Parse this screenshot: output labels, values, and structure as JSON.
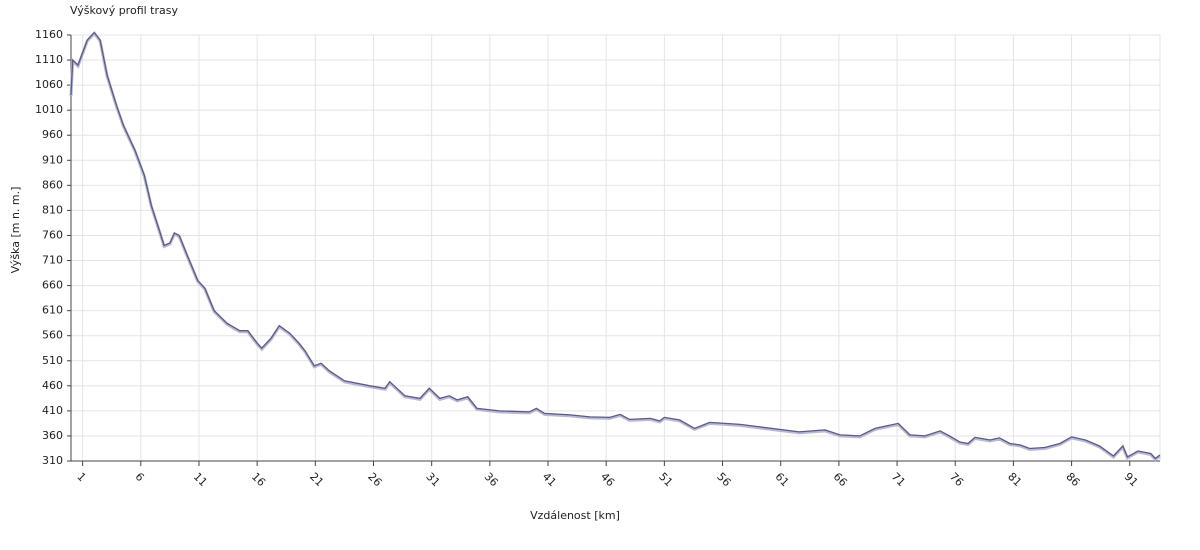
{
  "chart_data": {
    "type": "line",
    "title": "Výškový profil trasy",
    "x_label": "Vzdálenost [km]",
    "y_label": "Výška [m n. m.]",
    "x": [
      0,
      0.15,
      0.6,
      1.4,
      2.0,
      2.5,
      3.1,
      3.9,
      4.5,
      5.5,
      6.3,
      6.9,
      7.6,
      8.0,
      8.5,
      8.9,
      9.3,
      10.0,
      10.9,
      11.5,
      12.3,
      13.4,
      14.5,
      15.2,
      16.0,
      16.4,
      17.2,
      17.9,
      18.8,
      19.6,
      20.1,
      20.9,
      21.5,
      22.2,
      23.5,
      25.7,
      27.0,
      27.4,
      28.0,
      28.7,
      30.0,
      30.8,
      31.7,
      32.5,
      33.2,
      34.1,
      34.9,
      36.8,
      39.4,
      40.0,
      40.7,
      42.9,
      44.6,
      46.3,
      47.2,
      48.0,
      49.8,
      50.6,
      51.0,
      52.3,
      53.6,
      54.9,
      57.5,
      59.2,
      60.9,
      62.6,
      64.8,
      66.1,
      67.8,
      69.1,
      71.1,
      72.1,
      73.4,
      74.7,
      75.5,
      76.4,
      77.1,
      77.7,
      79.0,
      79.8,
      80.7,
      81.6,
      82.4,
      83.7,
      85.0,
      86.0,
      87.2,
      88.4,
      89.6,
      90.4,
      90.8,
      91.7,
      92.8,
      93.2,
      93.6
    ],
    "values": [
      1040,
      1110,
      1100,
      1150,
      1165,
      1150,
      1080,
      1020,
      980,
      930,
      880,
      820,
      770,
      740,
      745,
      765,
      760,
      720,
      670,
      655,
      610,
      585,
      570,
      570,
      545,
      535,
      555,
      580,
      565,
      545,
      530,
      500,
      505,
      490,
      470,
      460,
      455,
      468,
      455,
      440,
      435,
      455,
      435,
      440,
      432,
      438,
      415,
      410,
      408,
      415,
      405,
      402,
      398,
      397,
      403,
      393,
      395,
      390,
      397,
      392,
      375,
      387,
      383,
      378,
      373,
      368,
      372,
      362,
      360,
      375,
      385,
      362,
      360,
      370,
      360,
      348,
      345,
      357,
      352,
      356,
      345,
      342,
      335,
      337,
      345,
      358,
      352,
      340,
      320,
      340,
      318,
      330,
      325,
      315,
      322
    ],
    "color": "#5c5c80",
    "xlim": [
      0,
      93.6
    ],
    "xticks": [
      1,
      6,
      11,
      16,
      21,
      26,
      31,
      36,
      41,
      46,
      51,
      56,
      61,
      66,
      71,
      76,
      81,
      86,
      91
    ],
    "ylim": [
      310,
      1160
    ],
    "yticks": [
      310,
      360,
      410,
      460,
      510,
      560,
      610,
      660,
      710,
      760,
      810,
      860,
      910,
      960,
      1010,
      1060,
      1110,
      1160
    ],
    "grid": true
  }
}
